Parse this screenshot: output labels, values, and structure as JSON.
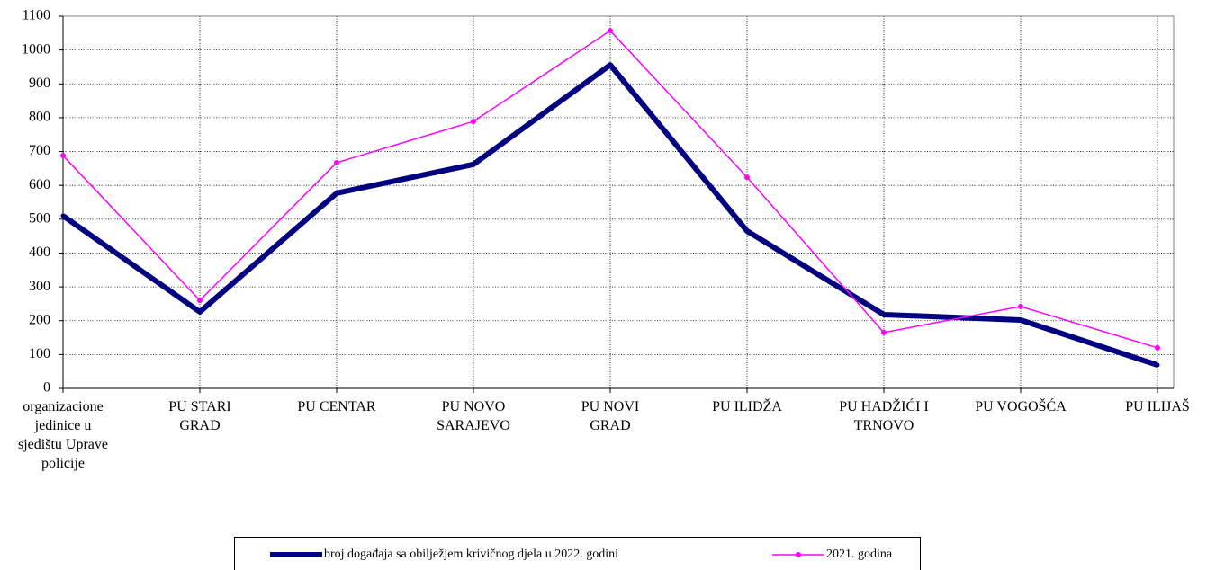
{
  "chart_data": {
    "type": "line",
    "categories": [
      "organizacione jedinice u sjedištu Uprave policije",
      "PU STARI GRAD",
      "PU CENTAR",
      "PU NOVO SARAJEVO",
      "PU NOVI GRAD",
      "PU ILIDŽA",
      "PU HADŽIĆI I TRNOVO",
      "PU VOGOŠĆA",
      "PU ILIJAŠ"
    ],
    "series": [
      {
        "name": "broj događaja sa obilježjem krivičnog djela u 2022. godini",
        "color": "#000080",
        "values": [
          510,
          226,
          577,
          662,
          956,
          465,
          218,
          202,
          69
        ]
      },
      {
        "name": "2021. godina",
        "color": "#ff00ff",
        "values": [
          688,
          260,
          667,
          789,
          1057,
          624,
          165,
          242,
          120
        ]
      }
    ],
    "ylim": [
      0,
      1100
    ],
    "yticks": [
      0,
      100,
      200,
      300,
      400,
      500,
      600,
      700,
      800,
      900,
      1000,
      1100
    ],
    "grid": true
  }
}
